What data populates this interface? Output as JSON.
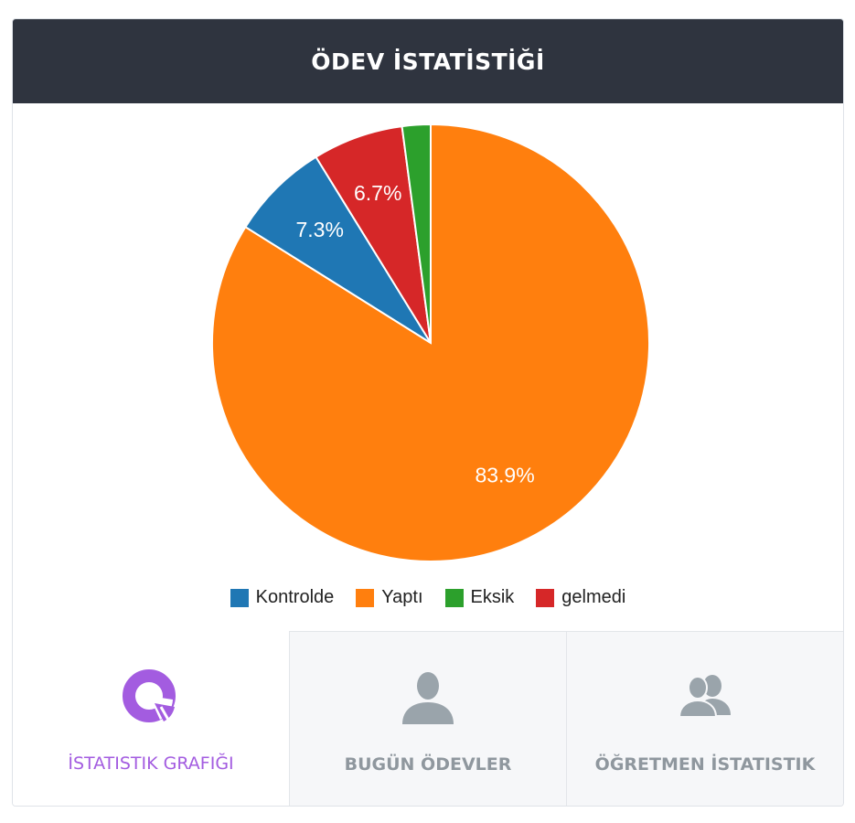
{
  "header": {
    "title": "ÖDEV İSTATİSTİĞİ"
  },
  "chart_data": {
    "type": "pie",
    "categories": [
      "Kontrolde",
      "Yaptı",
      "Eksik",
      "gelmedi"
    ],
    "values": [
      7.3,
      83.9,
      2.1,
      6.7
    ],
    "slice_order": [
      "Yaptı",
      "Kontrolde",
      "gelmedi",
      "Eksik"
    ],
    "slice_labels": [
      "83.9%",
      "7.3%",
      "6.7%",
      ""
    ],
    "colors": {
      "Kontrolde": "#1f77b4",
      "Yaptı": "#ff7f0e",
      "Eksik": "#2ca02c",
      "gelmedi": "#d62728"
    },
    "legend_position": "bottom"
  },
  "legend": {
    "items": [
      {
        "label": "Kontrolde",
        "color": "#1f77b4"
      },
      {
        "label": "Yaptı",
        "color": "#ff7f0e"
      },
      {
        "label": "Eksik",
        "color": "#2ca02c"
      },
      {
        "label": "gelmedi",
        "color": "#d62728"
      }
    ]
  },
  "tabs": [
    {
      "label": "İSTATISTIK GRAFIĞI",
      "icon": "pie-chart-icon",
      "active": true
    },
    {
      "label": "BUGÜN ÖDEVLER",
      "icon": "user-icon",
      "active": false
    },
    {
      "label": "ÖĞRETMEN İSTATISTIK",
      "icon": "users-icon",
      "active": false
    }
  ],
  "colors": {
    "header_bg": "#2f343f",
    "active_tab": "#a35ce0",
    "inactive_tab_text": "#8f979e",
    "inactive_icon": "#9aa4ab"
  }
}
